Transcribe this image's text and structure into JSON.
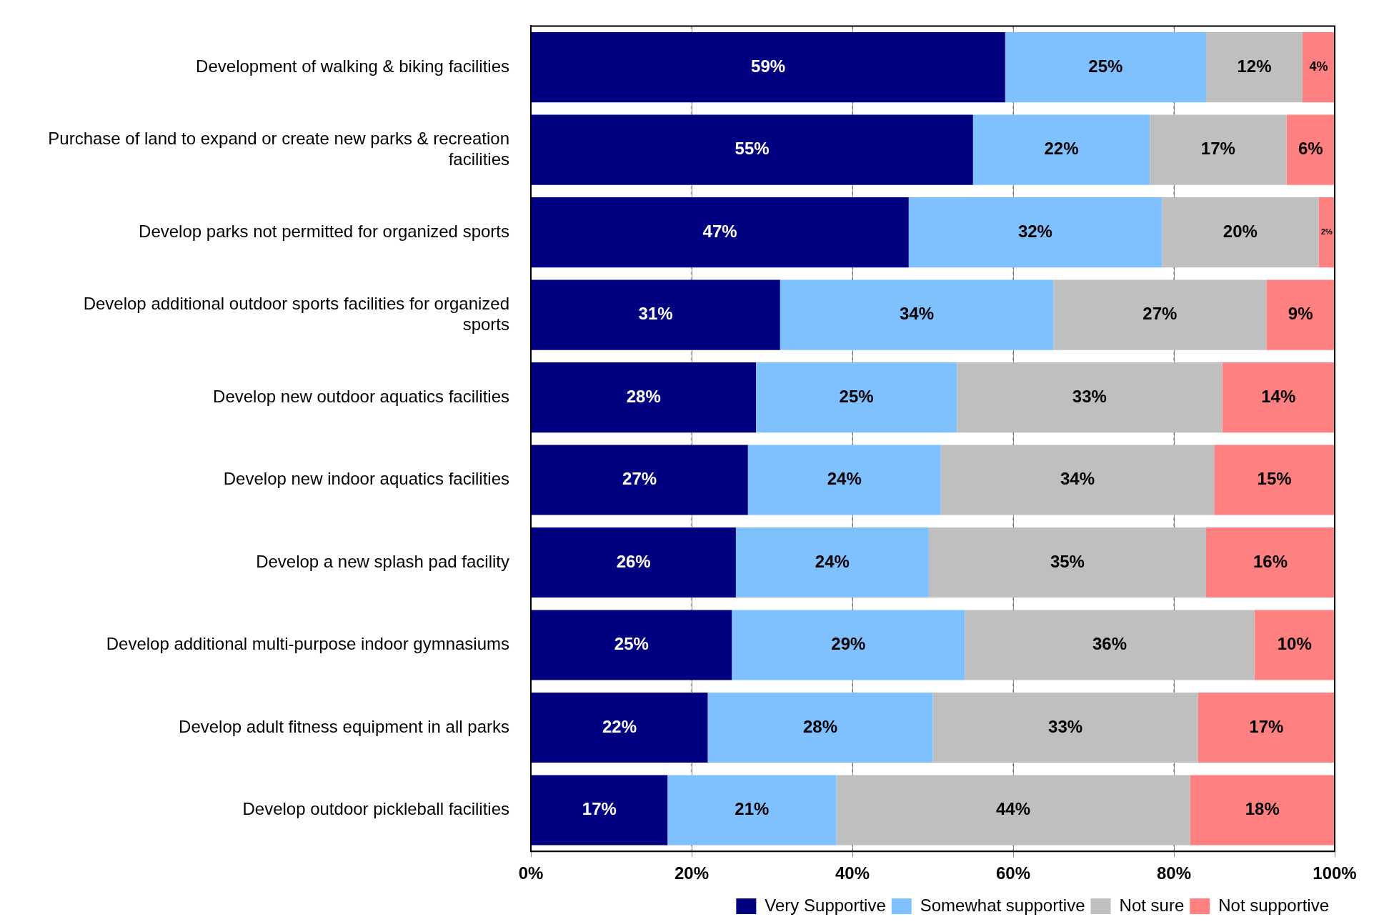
{
  "chart_data": {
    "type": "bar",
    "orientation": "horizontal",
    "stacked": true,
    "categories": [
      "Development of walking & biking facilities",
      "Purchase of land to expand or create new parks & recreation facilities",
      "Develop parks not permitted for organized sports",
      "Develop additional outdoor sports facilities for organized sports",
      "Develop new outdoor aquatics facilities",
      "Develop new indoor aquatics facilities",
      "Develop a new splash pad facility",
      "Develop additional multi-purpose indoor gymnasiums",
      "Develop adult fitness equipment in all parks",
      "Develop outdoor pickleball facilities"
    ],
    "series": [
      {
        "name": "Very Supportive",
        "color": "#000080",
        "values": [
          59,
          55,
          47,
          31,
          28,
          27,
          25.5,
          25,
          22,
          17
        ],
        "value_labels": [
          "59%",
          "55%",
          "47%",
          "31%",
          "28%",
          "27%",
          "26%",
          "25%",
          "22%",
          "17%"
        ]
      },
      {
        "name": "Somewhat supportive",
        "color": "#7fc1ff",
        "values": [
          25,
          22,
          31.5,
          34,
          25,
          24,
          24,
          29,
          28,
          21
        ],
        "value_labels": [
          "25%",
          "22%",
          "32%",
          "34%",
          "25%",
          "24%",
          "24%",
          "29%",
          "28%",
          "21%"
        ]
      },
      {
        "name": "Not sure",
        "color": "#bfbfbf",
        "values": [
          12,
          17,
          19.5,
          26.5,
          33,
          34,
          34.5,
          36,
          33,
          44
        ],
        "value_labels": [
          "12%",
          "17%",
          "20%",
          "27%",
          "33%",
          "34%",
          "35%",
          "36%",
          "33%",
          "44%"
        ]
      },
      {
        "name": "Not supportive",
        "color": "#ff8080",
        "values": [
          4,
          6,
          2,
          8.5,
          14,
          15,
          16,
          10,
          17,
          18
        ],
        "value_labels": [
          "4%",
          "6%",
          "2%",
          "9%",
          "14%",
          "15%",
          "16%",
          "10%",
          "17%",
          "18%"
        ]
      }
    ],
    "xlim": [
      0,
      100
    ],
    "xticks": [
      {
        "value": 0,
        "label": "0%"
      },
      {
        "value": 20,
        "label": "20%"
      },
      {
        "value": 40,
        "label": "40%"
      },
      {
        "value": 60,
        "label": "60%"
      },
      {
        "value": 80,
        "label": "80%"
      },
      {
        "value": 100,
        "label": "100%"
      }
    ],
    "grid": "x",
    "legend": "bottom right"
  }
}
